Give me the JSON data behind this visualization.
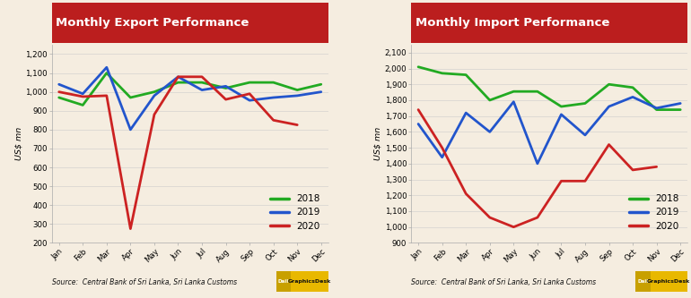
{
  "export": {
    "title": "Monthly Export Performance",
    "ylabel": "US$ mn",
    "ylim": [
      200,
      1250
    ],
    "yticks": [
      200,
      300,
      400,
      500,
      600,
      700,
      800,
      900,
      1000,
      1100,
      1200
    ],
    "2018": [
      970,
      930,
      1100,
      970,
      1000,
      1050,
      1050,
      1020,
      1050,
      1050,
      1010,
      1040
    ],
    "2019": [
      1040,
      990,
      1130,
      800,
      980,
      1080,
      1010,
      1030,
      955,
      970,
      980,
      1000
    ],
    "2020": [
      1000,
      975,
      980,
      275,
      880,
      1080,
      1080,
      960,
      990,
      850,
      825,
      null
    ]
  },
  "import": {
    "title": "Monthly Import Performance",
    "ylabel": "US$ mn",
    "ylim": [
      900,
      2150
    ],
    "yticks": [
      900,
      1000,
      1100,
      1200,
      1300,
      1400,
      1500,
      1600,
      1700,
      1800,
      1900,
      2000,
      2100
    ],
    "2018": [
      2010,
      1970,
      1960,
      1800,
      1855,
      1855,
      1760,
      1780,
      1900,
      1880,
      1740,
      1740
    ],
    "2019": [
      1650,
      1440,
      1720,
      1600,
      1790,
      1400,
      1710,
      1580,
      1760,
      1820,
      1750,
      1780
    ],
    "2020": [
      1740,
      1500,
      1210,
      1060,
      1000,
      1060,
      1290,
      1290,
      1520,
      1360,
      1380,
      null
    ]
  },
  "months": [
    "Jan",
    "Feb",
    "Mar",
    "Apr",
    "May",
    "Jun",
    "Jul",
    "Aug",
    "Sep",
    "Oct",
    "Nov",
    "Dec"
  ],
  "colors": {
    "2018": "#22aa22",
    "2019": "#2255cc",
    "2020": "#cc2222"
  },
  "title_bg": "#bb1e1e",
  "title_color": "#ffffff",
  "bg_color": "#f5ede0",
  "source_text": "Source:  Central Bank of Sri Lanka, Sri Lanka Customs",
  "logo_bg": "#e8b800",
  "logo_text": "GraphicsDesk",
  "linewidth": 2.0
}
